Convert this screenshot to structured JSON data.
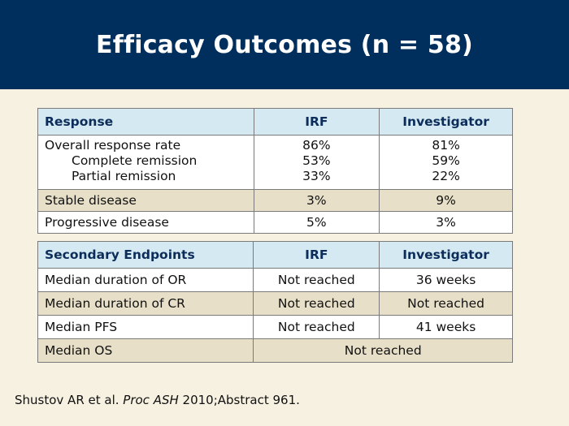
{
  "title": "Efficacy Outcomes (n = 58)",
  "response_table": {
    "headers": [
      "Response",
      "IRF",
      "Investigator"
    ],
    "rows": [
      {
        "labels": [
          "Overall response rate",
          "Complete remission",
          "Partial remission"
        ],
        "irf": [
          "86%",
          "53%",
          "33%"
        ],
        "investigator": [
          "81%",
          "59%",
          "22%"
        ]
      },
      {
        "label": "Stable disease",
        "irf": "3%",
        "investigator": "9%"
      },
      {
        "label": "Progressive disease",
        "irf": "5%",
        "investigator": "3%"
      }
    ]
  },
  "endpoints_table": {
    "headers": [
      "Secondary Endpoints",
      "IRF",
      "Investigator"
    ],
    "rows": [
      {
        "label": "Median duration of OR",
        "irf": "Not reached",
        "investigator": "36 weeks"
      },
      {
        "label": "Median duration of CR",
        "irf": "Not reached",
        "investigator": "Not reached"
      },
      {
        "label": "Median PFS",
        "irf": "Not reached",
        "investigator": "41 weeks"
      },
      {
        "label": "Median OS",
        "merged": "Not reached"
      }
    ]
  },
  "citation": {
    "authors": "Shustov AR et al.",
    "journal": "Proc ASH",
    "details": "2010;Abstract 961."
  },
  "colors": {
    "title_bar": "#002f5e",
    "background": "#f6f1e1",
    "header_row": "#d4e9f2",
    "header_text": "#0c2d5a",
    "shaded_row": "#e7dfc7"
  }
}
